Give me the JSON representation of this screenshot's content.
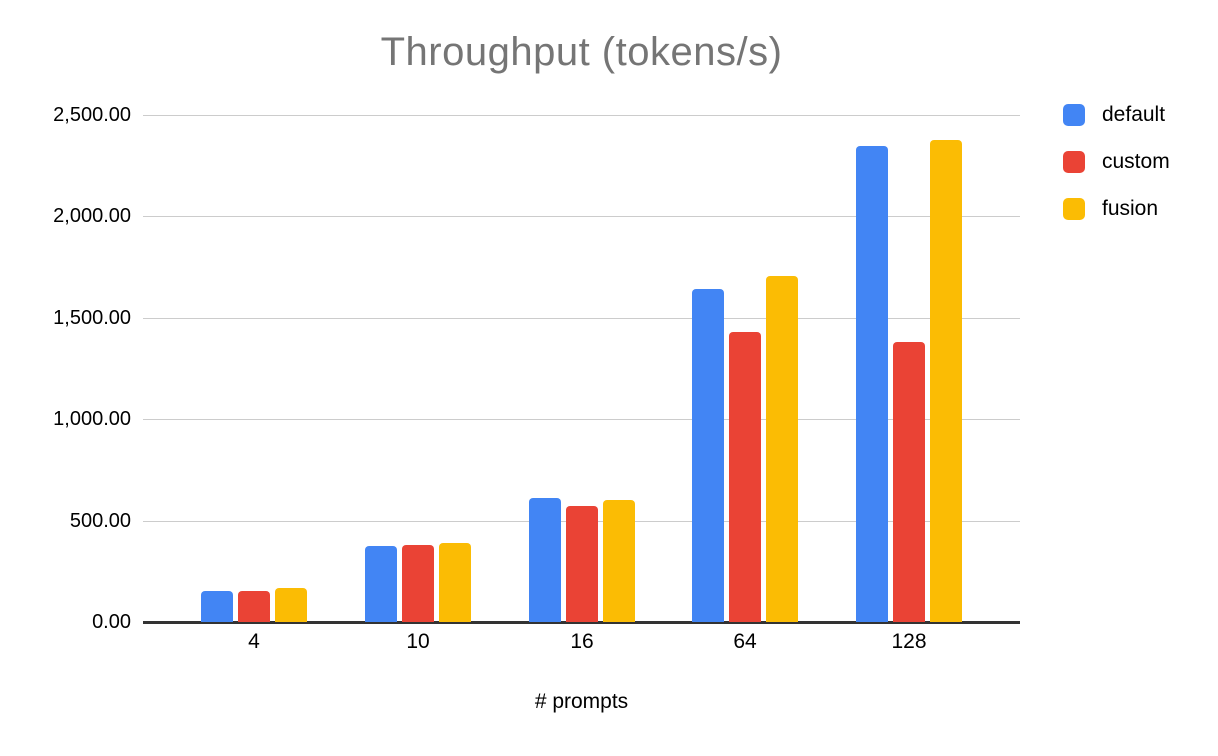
{
  "chart_data": {
    "type": "bar",
    "title": "Throughput (tokens/s)",
    "xlabel": "# prompts",
    "ylabel": "",
    "categories": [
      "4",
      "10",
      "16",
      "64",
      "128"
    ],
    "series": [
      {
        "name": "default",
        "color": "#4285F4",
        "values": [
          155,
          375,
          610,
          1640,
          2345
        ]
      },
      {
        "name": "custom",
        "color": "#EA4335",
        "values": [
          154,
          380,
          570,
          1430,
          1380
        ]
      },
      {
        "name": "fusion",
        "color": "#FBBC04",
        "values": [
          167,
          390,
          600,
          1705,
          2375
        ]
      }
    ],
    "ylim": [
      0,
      2500
    ],
    "ytick_values": [
      0,
      500,
      1000,
      1500,
      2000,
      2500
    ],
    "ytick_labels": [
      "0.00",
      "500.00",
      "1,000.00",
      "1,500.00",
      "2,000.00",
      "2,500.00"
    ],
    "grid": true,
    "legend_position": "right",
    "colors": {
      "title_text": "#757575",
      "axis_text": "#000000",
      "gridline": "#cccccc",
      "axis_line": "#333333",
      "background": "#ffffff"
    }
  }
}
